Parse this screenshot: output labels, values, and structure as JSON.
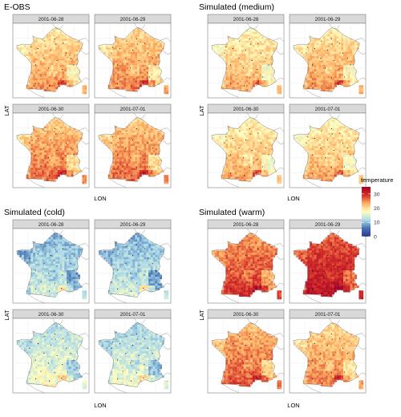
{
  "chart_data": [
    {
      "type": "heatmap",
      "title": "E-OBS",
      "xlabel": "LON",
      "ylabel": "LAT",
      "facets": [
        "2001-06-28",
        "2001-06-29",
        "2001-06-30",
        "2001-07-01"
      ],
      "mean_temperature": [
        22,
        23,
        24,
        24
      ]
    },
    {
      "type": "heatmap",
      "title": "Simulated (medium)",
      "xlabel": "LON",
      "ylabel": "LAT",
      "facets": [
        "2001-06-28",
        "2001-06-29",
        "2001-06-30",
        "2001-07-01"
      ],
      "mean_temperature": [
        21,
        22,
        21,
        21
      ]
    },
    {
      "type": "heatmap",
      "title": "Simulated (cold)",
      "xlabel": "LON",
      "ylabel": "LAT",
      "facets": [
        "2001-06-28",
        "2001-06-29",
        "2001-06-30",
        "2001-07-01"
      ],
      "mean_temperature": [
        12,
        12,
        15,
        14
      ]
    },
    {
      "type": "heatmap",
      "title": "Simulated (warm)",
      "xlabel": "LON",
      "ylabel": "LAT",
      "facets": [
        "2001-06-28",
        "2001-06-29",
        "2001-06-30",
        "2001-07-01"
      ],
      "mean_temperature": [
        27,
        30,
        25,
        23
      ]
    }
  ],
  "legend": {
    "title": "temperature",
    "ticks": [
      0,
      10,
      20,
      30
    ],
    "range": [
      0,
      35
    ],
    "colors": [
      "#313695",
      "#4575b4",
      "#abd9e9",
      "#ffffbf",
      "#fdae61",
      "#d73027",
      "#a50026"
    ]
  }
}
